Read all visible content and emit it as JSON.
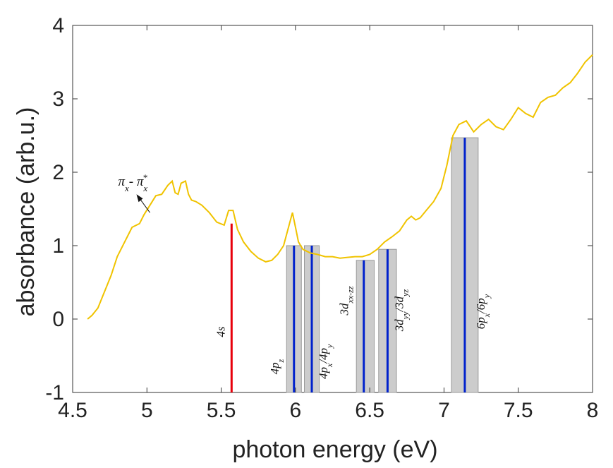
{
  "chart_data": {
    "type": "line",
    "xlabel": "photon energy (eV)",
    "ylabel": "absorbance (arb.u.)",
    "xlim": [
      4.5,
      8
    ],
    "ylim": [
      -1,
      4
    ],
    "xticks": [
      4.5,
      5,
      5.5,
      6,
      6.5,
      7,
      7.5,
      8
    ],
    "yticks": [
      -1,
      0,
      1,
      2,
      3,
      4
    ],
    "xtick_labels": [
      "4.5",
      "5",
      "5.5",
      "6",
      "6.5",
      "7",
      "7.5",
      "8"
    ],
    "ytick_labels": [
      "-1",
      "0",
      "1",
      "2",
      "3",
      "4"
    ],
    "grid": false,
    "series": [
      {
        "color": "#f0c300",
        "x": [
          4.6,
          4.63,
          4.67,
          4.7,
          4.73,
          4.76,
          4.8,
          4.85,
          4.9,
          4.95,
          4.98,
          5.02,
          5.06,
          5.1,
          5.14,
          5.17,
          5.19,
          5.21,
          5.23,
          5.26,
          5.28,
          5.3,
          5.33,
          5.37,
          5.42,
          5.47,
          5.52,
          5.55,
          5.58,
          5.61,
          5.65,
          5.7,
          5.75,
          5.8,
          5.84,
          5.88,
          5.92,
          5.96,
          5.98,
          6.0,
          6.02,
          6.05,
          6.1,
          6.15,
          6.2,
          6.25,
          6.3,
          6.35,
          6.4,
          6.45,
          6.5,
          6.55,
          6.6,
          6.65,
          6.7,
          6.75,
          6.78,
          6.81,
          6.84,
          6.88,
          6.93,
          6.98,
          7.02,
          7.06,
          7.1,
          7.15,
          7.2,
          7.25,
          7.3,
          7.35,
          7.4,
          7.45,
          7.5,
          7.55,
          7.6,
          7.65,
          7.7,
          7.75,
          7.8,
          7.85,
          7.9,
          7.95,
          8.0
        ],
        "y": [
          0.0,
          0.05,
          0.15,
          0.3,
          0.45,
          0.6,
          0.85,
          1.05,
          1.25,
          1.3,
          1.42,
          1.55,
          1.68,
          1.7,
          1.82,
          1.88,
          1.72,
          1.7,
          1.85,
          1.88,
          1.7,
          1.62,
          1.6,
          1.55,
          1.45,
          1.32,
          1.28,
          1.48,
          1.48,
          1.22,
          1.05,
          0.92,
          0.83,
          0.78,
          0.8,
          0.88,
          1.0,
          1.3,
          1.45,
          1.25,
          1.05,
          0.95,
          0.9,
          0.88,
          0.85,
          0.85,
          0.83,
          0.84,
          0.85,
          0.85,
          0.88,
          0.95,
          1.05,
          1.12,
          1.2,
          1.35,
          1.4,
          1.35,
          1.38,
          1.48,
          1.6,
          1.78,
          2.1,
          2.5,
          2.65,
          2.7,
          2.55,
          2.65,
          2.72,
          2.62,
          2.58,
          2.72,
          2.88,
          2.8,
          2.75,
          2.95,
          3.02,
          3.05,
          3.15,
          3.22,
          3.35,
          3.5,
          3.6
        ]
      }
    ],
    "transitions": [
      {
        "x": 5.57,
        "height": 1.3,
        "color": "#e8000b",
        "label": "4s"
      },
      {
        "x": 5.99,
        "height": 1.0,
        "color": "#0022cc",
        "band": [
          5.94,
          6.04
        ],
        "label": "4p_z"
      },
      {
        "x": 6.11,
        "height": 1.0,
        "color": "#0022cc",
        "band": [
          6.06,
          6.16
        ],
        "label": "4p_x/4p_y"
      },
      {
        "x": 6.46,
        "height": 0.8,
        "color": "#0022cc",
        "band": [
          6.41,
          6.53
        ],
        "label": "3d_xx-zz"
      },
      {
        "x": 6.62,
        "height": 0.95,
        "color": "#0022cc",
        "band": [
          6.56,
          6.68
        ],
        "label": "3d_yy/3d_yz"
      },
      {
        "x": 7.14,
        "height": 2.47,
        "color": "#0022cc",
        "band": [
          7.05,
          7.23
        ],
        "label": "6p_x/6p_y"
      }
    ],
    "annotation": {
      "text": "π_x - π_x*",
      "x": 5.02,
      "y": 1.45
    }
  },
  "colors": {
    "curve": "#f0c300",
    "band": "#cccccc",
    "band_edge": "#9a9a9a",
    "axis": "#333333"
  }
}
